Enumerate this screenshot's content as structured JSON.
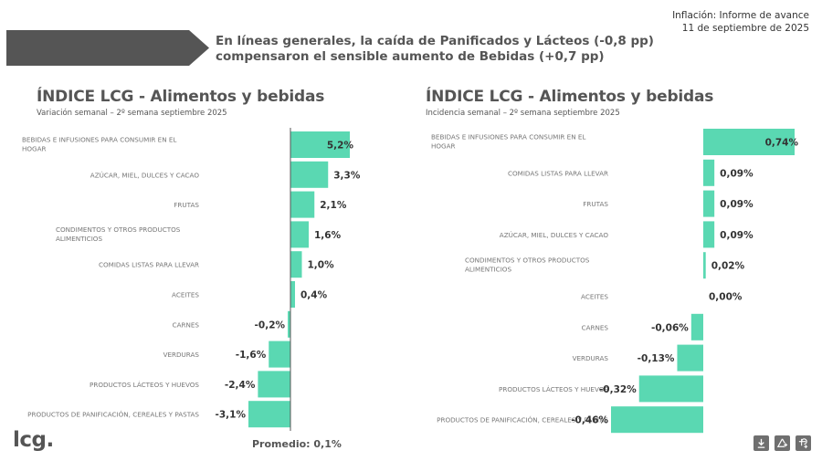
{
  "header": {
    "headline_line1": "En líneas generales, la caída de Panificados y Lácteos (-0,8 pp)",
    "headline_line2": "compensaron el sensible aumento de Bebidas (+0,7 pp)",
    "report_title": "Inflación: Informe de avance",
    "report_date": "11 de septiembre de 2025"
  },
  "footer": {
    "logo": "lcg.",
    "average_label": "Promedio: 0,1%"
  },
  "toolbar": {
    "icons": [
      "download-icon",
      "share-icon",
      "expand-icon"
    ]
  },
  "colors": {
    "bar": "#5ad8b2",
    "axis": "#555555",
    "banner": "#555555"
  },
  "chart_data": [
    {
      "type": "bar",
      "orientation": "horizontal",
      "title": "ÍNDICE LCG - Alimentos y bebidas",
      "subtitle": "Variación semanal – 2º semana septiembre 2025",
      "unit": "%",
      "categories": [
        [
          "BEBIDAS E INFUSIONES PARA CONSUMIR EN EL",
          "HOGAR"
        ],
        [
          "AZÚCAR, MIEL, DULCES Y CACAO"
        ],
        [
          "FRUTAS"
        ],
        [
          "CONDIMENTOS Y OTROS PRODUCTOS",
          "ALIMENTICIOS"
        ],
        [
          "COMIDAS LISTAS PARA LLEVAR"
        ],
        [
          "ACEITES"
        ],
        [
          "CARNES"
        ],
        [
          "VERDURAS"
        ],
        [
          "PRODUCTOS LÁCTEOS Y HUEVOS"
        ],
        [
          "PRODUCTOS DE PANIFICACIÓN, CEREALES Y PASTAS"
        ]
      ],
      "values": [
        5.2,
        3.3,
        2.1,
        1.6,
        1.0,
        0.4,
        -0.2,
        -1.6,
        -2.4,
        -3.1
      ],
      "value_labels": [
        "5,2%",
        "3,3%",
        "2,1%",
        "1,6%",
        "1,0%",
        "0,4%",
        "-0,2%",
        "-1,6%",
        "-2,4%",
        "-3,1%"
      ],
      "average": 0.1,
      "xlim": [
        -3.1,
        5.2
      ]
    },
    {
      "type": "bar",
      "orientation": "horizontal",
      "title": "ÍNDICE LCG - Alimentos y bebidas",
      "subtitle": "Incidencia semanal – 2º semana septiembre 2025",
      "unit": "%",
      "categories": [
        [
          "BEBIDAS E INFUSIONES PARA CONSUMIR EN EL",
          "HOGAR"
        ],
        [
          "COMIDAS LISTAS PARA LLEVAR"
        ],
        [
          "FRUTAS"
        ],
        [
          "AZÚCAR, MIEL, DULCES Y CACAO"
        ],
        [
          "CONDIMENTOS Y OTROS PRODUCTOS",
          "ALIMENTICIOS"
        ],
        [
          "ACEITES"
        ],
        [
          "CARNES"
        ],
        [
          "VERDURAS"
        ],
        [
          "PRODUCTOS LÁCTEOS Y HUEVOS"
        ],
        [
          "PRODUCTOS DE PANIFICACIÓN, CEREALES Y PASTAS"
        ]
      ],
      "values": [
        0.74,
        0.09,
        0.09,
        0.09,
        0.02,
        0.0,
        -0.06,
        -0.13,
        -0.32,
        -0.46
      ],
      "value_labels": [
        "0,74%",
        "0,09%",
        "0,09%",
        "0,09%",
        "0,02%",
        "0,00%",
        "-0,06%",
        "-0,13%",
        "-0,32%",
        "-0,46%"
      ],
      "xlim": [
        -0.46,
        0.74
      ]
    }
  ]
}
